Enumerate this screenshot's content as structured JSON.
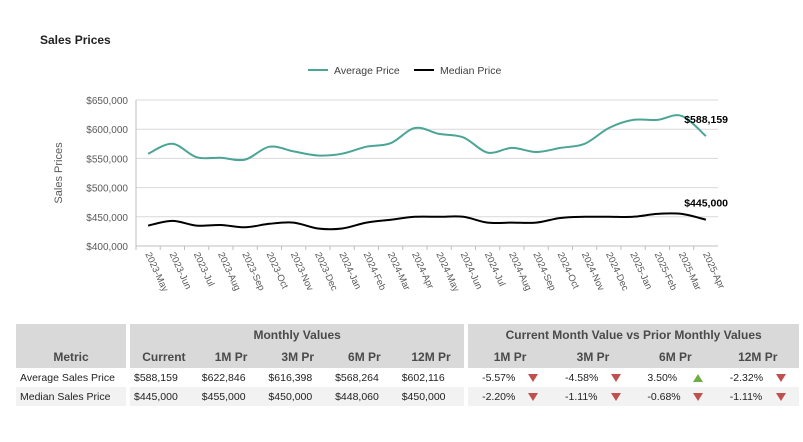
{
  "title": "Sales Prices",
  "chart_data": {
    "type": "line",
    "ylabel": "Sales Prices",
    "ylim": [
      400000,
      650000
    ],
    "yticks": [
      "$400,000",
      "$450,000",
      "$500,000",
      "$550,000",
      "$600,000",
      "$650,000"
    ],
    "ytick_values": [
      400000,
      450000,
      500000,
      550000,
      600000,
      650000
    ],
    "categories": [
      "2023-May",
      "2023-Jun",
      "2023-Jul",
      "2023-Aug",
      "2023-Sep",
      "2023-Oct",
      "2023-Nov",
      "2023-Dec",
      "2024-Jan",
      "2024-Feb",
      "2024-Mar",
      "2024-Apr",
      "2024-May",
      "2024-Jun",
      "2024-Jul",
      "2024-Aug",
      "2024-Sep",
      "2024-Oct",
      "2024-Nov",
      "2024-Dec",
      "2025-Jan",
      "2025-Feb",
      "2025-Mar",
      "2025-Apr"
    ],
    "series": [
      {
        "name": "Average Price",
        "color": "#4aa596",
        "values": [
          558000,
          575000,
          552000,
          551000,
          548000,
          570000,
          562000,
          555000,
          558000,
          570000,
          576000,
          602000,
          592000,
          586000,
          560000,
          568000,
          561000,
          568000,
          575000,
          602000,
          616000,
          616000,
          622846,
          588159
        ],
        "end_label": "$588,159"
      },
      {
        "name": "Median Price",
        "color": "#000000",
        "values": [
          435000,
          443000,
          435000,
          436000,
          432000,
          438000,
          440000,
          430000,
          430000,
          440000,
          445000,
          450000,
          450000,
          450000,
          440000,
          440000,
          440000,
          448000,
          450000,
          450000,
          450000,
          455000,
          455000,
          445000
        ],
        "end_label": "$445,000"
      }
    ],
    "legend": "top-center",
    "grid": "horizontal"
  },
  "table": {
    "group_monthly": "Monthly Values",
    "group_compare": "Current Month Value vs Prior Monthly Values",
    "headers": [
      "Metric",
      "Current",
      "1M Pr",
      "3M Pr",
      "6M Pr",
      "12M Pr",
      "1M Pr",
      "3M Pr",
      "6M Pr",
      "12M Pr"
    ],
    "rows": [
      {
        "metric": "Average Sales Price",
        "current": "$588,159",
        "m1": "$622,846",
        "m3": "$616,398",
        "m6": "$568,264",
        "m12": "$602,116",
        "c1": "-5.57%",
        "c1d": "down",
        "c3": "-4.58%",
        "c3d": "down",
        "c6": "3.50%",
        "c6d": "up",
        "c12": "-2.32%",
        "c12d": "down"
      },
      {
        "metric": "Median Sales Price",
        "current": "$445,000",
        "m1": "$455,000",
        "m3": "$450,000",
        "m6": "$448,060",
        "m12": "$450,000",
        "c1": "-2.20%",
        "c1d": "down",
        "c3": "-1.11%",
        "c3d": "down",
        "c6": "-0.68%",
        "c6d": "down",
        "c12": "-1.11%",
        "c12d": "down"
      }
    ]
  }
}
